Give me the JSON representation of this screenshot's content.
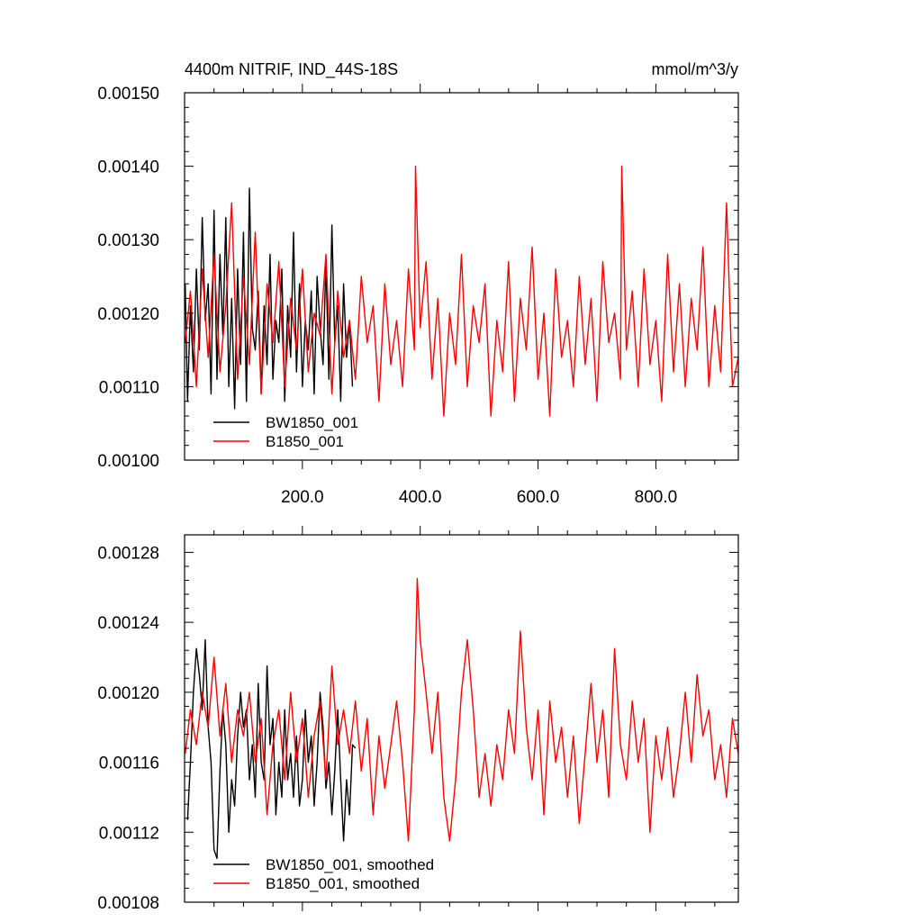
{
  "chart_data": [
    {
      "type": "line",
      "title": "4400m NITRIF, IND_44S-18S",
      "units": "mmol/m^3/y",
      "xlabel": "",
      "ylabel": "",
      "xlim": [
        0,
        940
      ],
      "ylim": [
        0.001,
        0.0015
      ],
      "x_ticks": [
        200,
        400,
        600,
        800
      ],
      "x_tick_labels": [
        "200.0",
        "400.0",
        "600.0",
        "800.0"
      ],
      "y_ticks": [
        0.001,
        0.0011,
        0.0012,
        0.0013,
        0.0014,
        0.0015
      ],
      "y_tick_labels": [
        "0.00100",
        "0.00110",
        "0.00120",
        "0.00130",
        "0.00140",
        "0.00150"
      ],
      "grid": false,
      "legend_position": "bottom-left",
      "series": [
        {
          "name": "BW1850_001",
          "color": "#000000",
          "x": [
            1,
            5,
            10,
            15,
            20,
            25,
            30,
            35,
            40,
            45,
            50,
            55,
            60,
            65,
            70,
            75,
            80,
            85,
            90,
            95,
            100,
            105,
            110,
            115,
            120,
            125,
            130,
            135,
            140,
            145,
            150,
            155,
            160,
            165,
            170,
            175,
            180,
            185,
            190,
            195,
            200,
            205,
            210,
            215,
            220,
            225,
            230,
            235,
            240,
            245,
            250,
            255,
            260,
            265,
            270,
            275,
            280,
            285
          ],
          "values": [
            0.00124,
            0.00108,
            0.00121,
            0.00112,
            0.00126,
            0.00115,
            0.00133,
            0.00119,
            0.00124,
            0.00109,
            0.00134,
            0.00111,
            0.00128,
            0.00117,
            0.00133,
            0.0011,
            0.00122,
            0.00107,
            0.00126,
            0.00113,
            0.00131,
            0.00108,
            0.00137,
            0.00118,
            0.00115,
            0.00123,
            0.00109,
            0.00121,
            0.00113,
            0.00128,
            0.00111,
            0.00119,
            0.00116,
            0.00126,
            0.00108,
            0.00121,
            0.00114,
            0.00131,
            0.00112,
            0.00124,
            0.0011,
            0.00119,
            0.00115,
            0.00123,
            0.00109,
            0.00125,
            0.00118,
            0.00113,
            0.00127,
            0.00111,
            0.00132,
            0.00116,
            0.00121,
            0.00108,
            0.00124,
            0.00114,
            0.00119,
            0.0011
          ]
        },
        {
          "name": "B1850_001",
          "color": "#ff0000",
          "x": [
            1,
            10,
            20,
            30,
            40,
            50,
            60,
            70,
            80,
            90,
            100,
            110,
            120,
            130,
            140,
            150,
            160,
            170,
            180,
            190,
            200,
            210,
            220,
            230,
            240,
            250,
            260,
            270,
            280,
            290,
            300,
            310,
            320,
            330,
            340,
            350,
            360,
            370,
            380,
            390,
            392,
            400,
            410,
            420,
            430,
            440,
            450,
            460,
            470,
            480,
            490,
            500,
            510,
            520,
            530,
            540,
            550,
            560,
            570,
            580,
            590,
            600,
            610,
            620,
            630,
            640,
            650,
            660,
            670,
            680,
            690,
            700,
            710,
            720,
            730,
            740,
            742,
            750,
            760,
            770,
            780,
            790,
            800,
            810,
            820,
            830,
            840,
            850,
            860,
            870,
            880,
            890,
            900,
            910,
            920,
            930,
            940
          ],
          "values": [
            0.00116,
            0.00123,
            0.0011,
            0.00126,
            0.00114,
            0.00128,
            0.00112,
            0.00121,
            0.00135,
            0.00111,
            0.00125,
            0.00113,
            0.00131,
            0.00109,
            0.00124,
            0.00116,
            0.00127,
            0.0011,
            0.00122,
            0.00115,
            0.00126,
            0.00112,
            0.0012,
            0.00117,
            0.00128,
            0.00109,
            0.00123,
            0.00114,
            0.00119,
            0.00111,
            0.00125,
            0.00116,
            0.00121,
            0.00108,
            0.00124,
            0.00113,
            0.00119,
            0.0011,
            0.00126,
            0.00115,
            0.0014,
            0.00118,
            0.00127,
            0.00111,
            0.00122,
            0.00106,
            0.0012,
            0.00113,
            0.00128,
            0.0011,
            0.00121,
            0.00116,
            0.00124,
            0.00106,
            0.00119,
            0.00112,
            0.00127,
            0.00108,
            0.00122,
            0.00115,
            0.00129,
            0.00111,
            0.0012,
            0.00106,
            0.00126,
            0.00114,
            0.00119,
            0.0011,
            0.00125,
            0.00113,
            0.00122,
            0.00108,
            0.00127,
            0.00116,
            0.0012,
            0.00111,
            0.0014,
            0.00115,
            0.00123,
            0.0011,
            0.00126,
            0.00113,
            0.00119,
            0.00108,
            0.00128,
            0.00112,
            0.00124,
            0.0011,
            0.00122,
            0.00115,
            0.00129,
            0.0011,
            0.00121,
            0.00112,
            0.00135,
            0.0011,
            0.00114
          ]
        }
      ]
    },
    {
      "type": "line",
      "title": "",
      "xlabel": "",
      "ylabel": "",
      "xlim": [
        0,
        940
      ],
      "ylim": [
        0.00108,
        0.00129
      ],
      "x_ticks": [
        200,
        400,
        600,
        800
      ],
      "x_tick_labels": [],
      "y_ticks": [
        0.00108,
        0.00112,
        0.00116,
        0.0012,
        0.00124,
        0.00128
      ],
      "y_tick_labels": [
        "0.00108",
        "0.00112",
        "0.00116",
        "0.00120",
        "0.00124",
        "0.00128"
      ],
      "grid": false,
      "legend_position": "bottom-left",
      "series": [
        {
          "name": "BW1850_001, smoothed",
          "color": "#000000",
          "x": [
            5,
            10,
            15,
            20,
            25,
            30,
            35,
            40,
            45,
            50,
            55,
            60,
            65,
            70,
            75,
            80,
            85,
            90,
            95,
            100,
            105,
            110,
            115,
            120,
            125,
            130,
            135,
            140,
            145,
            150,
            155,
            160,
            165,
            170,
            175,
            180,
            185,
            190,
            195,
            200,
            205,
            210,
            215,
            220,
            225,
            230,
            235,
            240,
            245,
            250,
            255,
            260,
            265,
            270,
            275,
            280,
            285,
            290
          ],
          "values": [
            0.001127,
            0.00116,
            0.0012,
            0.001225,
            0.00121,
            0.00119,
            0.00123,
            0.00118,
            0.00116,
            0.00111,
            0.001105,
            0.001155,
            0.00119,
            0.00117,
            0.00112,
            0.00115,
            0.001135,
            0.001175,
            0.0012,
            0.00118,
            0.00119,
            0.00115,
            0.00117,
            0.00114,
            0.001205,
            0.00116,
            0.00115,
            0.001215,
            0.00117,
            0.001185,
            0.00113,
            0.00116,
            0.00114,
            0.00119,
            0.00115,
            0.001165,
            0.00114,
            0.001175,
            0.001135,
            0.00115,
            0.00119,
            0.00116,
            0.001175,
            0.001135,
            0.00116,
            0.0012,
            0.00118,
            0.001145,
            0.00116,
            0.00113,
            0.001155,
            0.00119,
            0.00115,
            0.001115,
            0.00115,
            0.00113,
            0.00117,
            0.001168
          ]
        },
        {
          "name": "B1850_001, smoothed",
          "color": "#ff0000",
          "x": [
            1,
            10,
            20,
            30,
            40,
            50,
            60,
            70,
            80,
            90,
            100,
            110,
            120,
            130,
            140,
            150,
            160,
            170,
            180,
            190,
            200,
            210,
            220,
            230,
            240,
            250,
            260,
            270,
            280,
            290,
            300,
            310,
            320,
            330,
            340,
            350,
            360,
            370,
            380,
            390,
            395,
            400,
            410,
            420,
            430,
            440,
            450,
            460,
            470,
            480,
            490,
            500,
            510,
            520,
            530,
            540,
            550,
            560,
            570,
            580,
            590,
            600,
            610,
            620,
            630,
            640,
            650,
            660,
            670,
            680,
            690,
            700,
            710,
            720,
            730,
            740,
            750,
            760,
            770,
            780,
            790,
            800,
            810,
            820,
            830,
            840,
            850,
            860,
            870,
            880,
            890,
            900,
            910,
            920,
            930,
            940
          ],
          "values": [
            0.001165,
            0.00119,
            0.00117,
            0.0012,
            0.00118,
            0.00122,
            0.001175,
            0.001205,
            0.00116,
            0.00119,
            0.001175,
            0.0012,
            0.00116,
            0.001185,
            0.00113,
            0.00117,
            0.00119,
            0.00115,
            0.0012,
            0.00116,
            0.001185,
            0.00114,
            0.001175,
            0.001195,
            0.00115,
            0.001215,
            0.00117,
            0.00119,
            0.001165,
            0.001195,
            0.001155,
            0.001185,
            0.00113,
            0.001175,
            0.001145,
            0.00117,
            0.001195,
            0.00116,
            0.001115,
            0.00119,
            0.001265,
            0.00123,
            0.0012,
            0.001165,
            0.0012,
            0.00114,
            0.001115,
            0.00115,
            0.0012,
            0.00123,
            0.00119,
            0.00114,
            0.001165,
            0.001135,
            0.00117,
            0.00115,
            0.00119,
            0.001165,
            0.001235,
            0.00118,
            0.00115,
            0.00119,
            0.00113,
            0.001195,
            0.00116,
            0.00118,
            0.00114,
            0.001175,
            0.001125,
            0.001165,
            0.001205,
            0.00116,
            0.00119,
            0.00114,
            0.001225,
            0.00117,
            0.00115,
            0.001195,
            0.00116,
            0.001185,
            0.00112,
            0.001175,
            0.00115,
            0.00118,
            0.00114,
            0.001165,
            0.0012,
            0.00116,
            0.00121,
            0.001175,
            0.00119,
            0.00115,
            0.00117,
            0.00114,
            0.001185,
            0.001165
          ]
        }
      ]
    }
  ]
}
